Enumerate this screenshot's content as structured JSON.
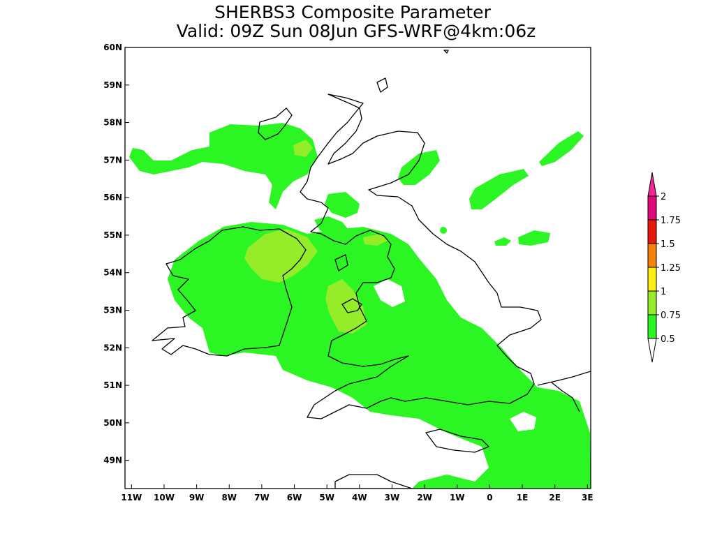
{
  "title": {
    "line1": "SHERBS3 Composite Parameter",
    "line2": "Valid: 09Z Sun 08Jun GFS-WRF@4km:06z"
  },
  "axes": {
    "x_ticks": [
      {
        "lon": -11,
        "label": "11W"
      },
      {
        "lon": -10,
        "label": "10W"
      },
      {
        "lon": -9,
        "label": "9W"
      },
      {
        "lon": -8,
        "label": "8W"
      },
      {
        "lon": -7,
        "label": "7W"
      },
      {
        "lon": -6,
        "label": "6W"
      },
      {
        "lon": -5,
        "label": "5W"
      },
      {
        "lon": -4,
        "label": "4W"
      },
      {
        "lon": -3,
        "label": "3W"
      },
      {
        "lon": -2,
        "label": "2W"
      },
      {
        "lon": -1,
        "label": "1W"
      },
      {
        "lon": 0,
        "label": "0"
      },
      {
        "lon": 1,
        "label": "1E"
      },
      {
        "lon": 2,
        "label": "2E"
      },
      {
        "lon": 3,
        "label": "3E"
      }
    ],
    "y_ticks": [
      {
        "lat": 49,
        "label": "49N"
      },
      {
        "lat": 50,
        "label": "50N"
      },
      {
        "lat": 51,
        "label": "51N"
      },
      {
        "lat": 52,
        "label": "52N"
      },
      {
        "lat": 53,
        "label": "53N"
      },
      {
        "lat": 54,
        "label": "54N"
      },
      {
        "lat": 55,
        "label": "55N"
      },
      {
        "lat": 56,
        "label": "56N"
      },
      {
        "lat": 57,
        "label": "57N"
      },
      {
        "lat": 58,
        "label": "58N"
      },
      {
        "lat": 59,
        "label": "59N"
      },
      {
        "lat": 60,
        "label": "60N"
      }
    ],
    "lon_range": [
      -11.2,
      3.1
    ],
    "lat_range": [
      48.25,
      60.0
    ]
  },
  "legend": {
    "bins": [
      {
        "label": "0.5",
        "color": "#ffffff"
      },
      {
        "label": "0.75",
        "color": "#2cf524"
      },
      {
        "label": "1",
        "color": "#95ec28"
      },
      {
        "label": "1.25",
        "color": "#ffee10"
      },
      {
        "label": "1.5",
        "color": "#f5820c"
      },
      {
        "label": "1.75",
        "color": "#e8180e"
      },
      {
        "label": "2",
        "color": "#e0087a"
      }
    ],
    "overflow_color": "#f02896"
  },
  "colors": {
    "level_0_5": "#2cf524",
    "level_0_75": "#95ec28"
  }
}
